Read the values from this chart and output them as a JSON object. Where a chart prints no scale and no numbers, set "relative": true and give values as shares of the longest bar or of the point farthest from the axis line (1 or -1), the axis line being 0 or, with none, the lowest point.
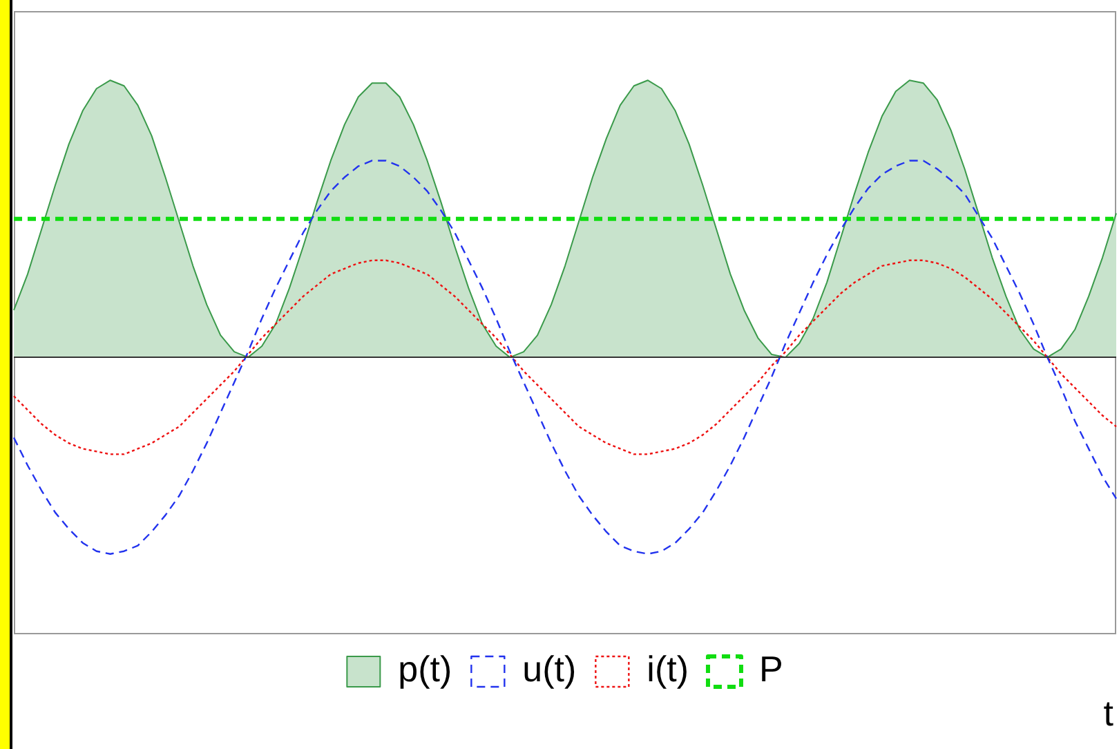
{
  "chart_data": {
    "type": "line",
    "relative": true,
    "xlabel": "t",
    "legend": "bottom",
    "marker": "none",
    "categories": [
      null,
      null,
      null,
      null,
      null,
      null,
      null,
      null,
      null,
      null,
      null,
      null,
      null,
      null,
      null,
      null,
      null,
      null,
      null,
      null,
      null,
      null,
      null,
      null,
      null,
      null,
      null,
      null,
      null,
      null,
      null,
      null,
      null,
      null,
      null,
      null,
      null,
      null,
      null,
      null,
      null,
      null,
      null,
      null,
      null,
      null,
      null,
      null,
      null,
      null,
      null,
      null,
      null,
      null,
      null,
      null,
      null,
      null,
      null,
      null,
      null,
      null,
      null,
      null,
      null,
      null,
      null,
      null,
      null,
      null,
      null,
      null,
      null,
      null,
      null,
      null,
      null,
      null,
      null,
      null,
      null
    ],
    "series": [
      {
        "name": "p(t)",
        "type": "area",
        "color": "#3a9a4a",
        "line_style": "solid",
        "values": [
          0.17,
          0.3,
          0.46,
          0.62,
          0.77,
          0.89,
          0.97,
          1.0,
          0.98,
          0.91,
          0.8,
          0.65,
          0.49,
          0.33,
          0.19,
          0.08,
          0.02,
          0.0,
          0.04,
          0.12,
          0.25,
          0.4,
          0.56,
          0.71,
          0.84,
          0.94,
          0.99,
          0.99,
          0.94,
          0.84,
          0.71,
          0.56,
          0.4,
          0.25,
          0.12,
          0.04,
          0.0,
          0.02,
          0.08,
          0.19,
          0.33,
          0.49,
          0.65,
          0.79,
          0.91,
          0.98,
          1.0,
          0.97,
          0.89,
          0.77,
          0.62,
          0.46,
          0.3,
          0.17,
          0.07,
          0.01,
          0.0,
          0.05,
          0.14,
          0.27,
          0.43,
          0.59,
          0.74,
          0.87,
          0.96,
          1.0,
          0.99,
          0.93,
          0.82,
          0.68,
          0.52,
          0.36,
          0.22,
          0.1,
          0.03,
          0.0,
          0.03,
          0.1,
          0.22,
          0.36,
          0.52
        ]
      },
      {
        "name": "u(t)",
        "color": "#2233ee",
        "line_style": "dashed",
        "values": [
          -0.29,
          -0.39,
          -0.48,
          -0.56,
          -0.62,
          -0.67,
          -0.7,
          -0.71,
          -0.7,
          -0.68,
          -0.63,
          -0.57,
          -0.5,
          -0.41,
          -0.31,
          -0.2,
          -0.09,
          0.02,
          0.14,
          0.25,
          0.35,
          0.45,
          0.53,
          0.6,
          0.65,
          0.69,
          0.71,
          0.71,
          0.69,
          0.65,
          0.6,
          0.53,
          0.45,
          0.35,
          0.25,
          0.14,
          0.02,
          -0.09,
          -0.2,
          -0.31,
          -0.41,
          -0.5,
          -0.57,
          -0.63,
          -0.68,
          -0.7,
          -0.71,
          -0.7,
          -0.67,
          -0.62,
          -0.56,
          -0.48,
          -0.39,
          -0.29,
          -0.18,
          -0.07,
          0.05,
          0.16,
          0.27,
          0.37,
          0.46,
          0.54,
          0.61,
          0.66,
          0.69,
          0.71,
          0.71,
          0.68,
          0.64,
          0.59,
          0.51,
          0.43,
          0.33,
          0.23,
          0.12,
          0.0,
          -0.11,
          -0.23,
          -0.33,
          -0.43,
          -0.51
        ]
      },
      {
        "name": "i(t)",
        "color": "#ee1111",
        "line_style": "dotted",
        "values": [
          -0.14,
          -0.19,
          -0.24,
          -0.28,
          -0.31,
          -0.33,
          -0.34,
          -0.35,
          -0.35,
          -0.33,
          -0.31,
          -0.28,
          -0.25,
          -0.2,
          -0.15,
          -0.1,
          -0.05,
          0.01,
          0.07,
          0.12,
          0.17,
          0.22,
          0.26,
          0.3,
          0.32,
          0.34,
          0.35,
          0.35,
          0.34,
          0.32,
          0.3,
          0.26,
          0.22,
          0.17,
          0.12,
          0.07,
          0.01,
          -0.05,
          -0.1,
          -0.15,
          -0.2,
          -0.25,
          -0.28,
          -0.31,
          -0.33,
          -0.35,
          -0.35,
          -0.34,
          -0.33,
          -0.31,
          -0.28,
          -0.24,
          -0.19,
          -0.14,
          -0.09,
          -0.03,
          0.02,
          0.08,
          0.13,
          0.18,
          0.23,
          0.27,
          0.3,
          0.33,
          0.34,
          0.35,
          0.35,
          0.34,
          0.32,
          0.29,
          0.25,
          0.21,
          0.16,
          0.11,
          0.06,
          0.0,
          -0.06,
          -0.11,
          -0.16,
          -0.21,
          -0.25
        ]
      },
      {
        "name": "P",
        "color": "#11dd11",
        "line_style": "dashed",
        "values": [
          0.5,
          0.5,
          0.5,
          0.5,
          0.5,
          0.5,
          0.5,
          0.5,
          0.5,
          0.5,
          0.5,
          0.5,
          0.5,
          0.5,
          0.5,
          0.5,
          0.5,
          0.5,
          0.5,
          0.5,
          0.5,
          0.5,
          0.5,
          0.5,
          0.5,
          0.5,
          0.5,
          0.5,
          0.5,
          0.5,
          0.5,
          0.5,
          0.5,
          0.5,
          0.5,
          0.5,
          0.5,
          0.5,
          0.5,
          0.5,
          0.5,
          0.5,
          0.5,
          0.5,
          0.5,
          0.5,
          0.5,
          0.5,
          0.5,
          0.5,
          0.5,
          0.5,
          0.5,
          0.5,
          0.5,
          0.5,
          0.5,
          0.5,
          0.5,
          0.5,
          0.5,
          0.5,
          0.5,
          0.5,
          0.5,
          0.5,
          0.5,
          0.5,
          0.5,
          0.5,
          0.5,
          0.5,
          0.5,
          0.5,
          0.5,
          0.5,
          0.5,
          0.5,
          0.5,
          0.5,
          0.5
        ]
      }
    ]
  }
}
